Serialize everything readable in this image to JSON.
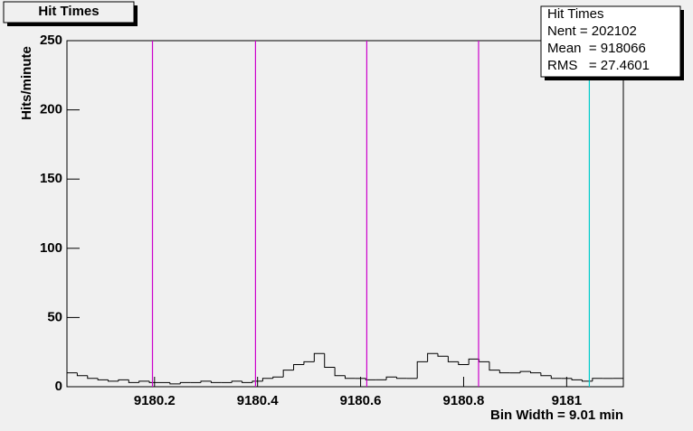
{
  "chart_data": {
    "type": "histogram",
    "title": "Hit Times",
    "y_label": "Hits/minute",
    "footer": "Bin Width =  9.01 min",
    "bins": [
      9180.03,
      9180.05,
      9180.07,
      9180.09,
      9180.11,
      9180.13,
      9180.15,
      9180.17,
      9180.19,
      9180.21,
      9180.23,
      9180.25,
      9180.27,
      9180.29,
      9180.31,
      9180.33,
      9180.35,
      9180.37,
      9180.39,
      9180.41,
      9180.43,
      9180.45,
      9180.47,
      9180.49,
      9180.51,
      9180.53,
      9180.55,
      9180.57,
      9180.59,
      9180.61,
      9180.63,
      9180.65,
      9180.67,
      9180.69,
      9180.71,
      9180.73,
      9180.75,
      9180.77,
      9180.79,
      9180.81,
      9180.83,
      9180.85,
      9180.87,
      9180.89,
      9180.91,
      9180.93,
      9180.95,
      9180.97,
      9180.99,
      9181.01,
      9181.03,
      9181.05,
      9181.07,
      9181.09,
      9181.11
    ],
    "values": [
      10,
      8,
      6,
      5,
      4,
      5,
      3,
      4,
      3,
      3,
      2,
      3,
      3,
      4,
      3,
      3,
      4,
      3,
      4,
      6,
      7,
      12,
      16,
      18,
      24,
      14,
      8,
      6,
      6,
      5,
      5,
      7,
      6,
      6,
      18,
      24,
      22,
      18,
      16,
      20,
      18,
      12,
      10,
      10,
      11,
      10,
      8,
      6,
      6,
      5,
      4,
      6,
      6,
      6
    ],
    "color": "#000000",
    "xlim": [
      9180.03,
      9181.11
    ],
    "ylim": [
      0,
      250
    ],
    "xticks": [
      9180.2,
      9180.4,
      9180.6,
      9180.8,
      9181
    ],
    "yticks": [
      0,
      50,
      100,
      150,
      200,
      250
    ],
    "markers": [
      {
        "x": 9180.196,
        "color": "#cc00cc"
      },
      {
        "x": 9180.396,
        "color": "#cc00cc"
      },
      {
        "x": 9180.612,
        "color": "#cc00cc"
      },
      {
        "x": 9180.829,
        "color": "#cc00cc"
      },
      {
        "x": 9181.044,
        "color": "#00cccc"
      }
    ],
    "stats": {
      "title": "Hit Times",
      "lines": [
        "Nent = 202102",
        "Mean  = 918066",
        "RMS   = 27.4601"
      ]
    }
  }
}
